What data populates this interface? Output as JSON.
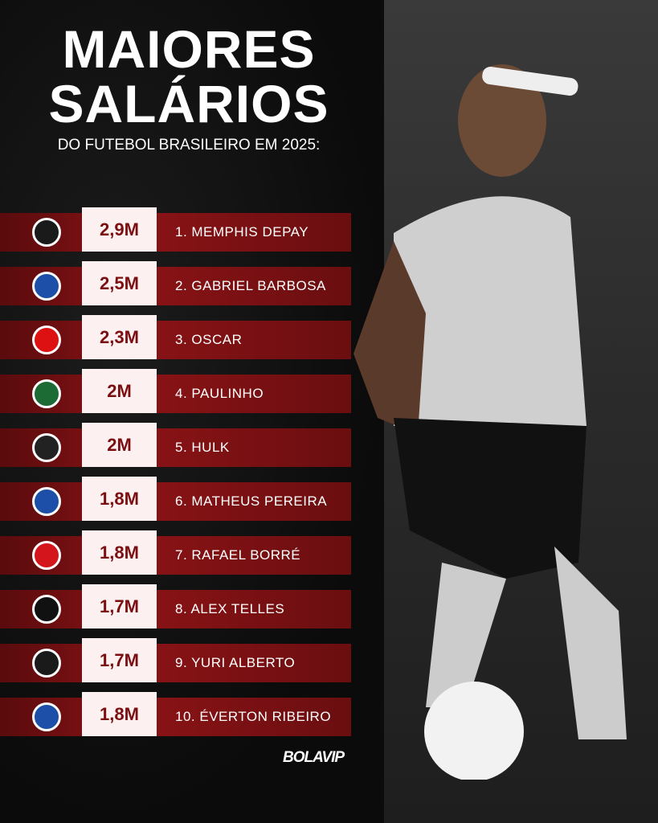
{
  "title_line1": "MAIORES",
  "title_line2": "SALÁRIOS",
  "subtitle": "DO FUTEBOL BRASILEIRO EM 2025:",
  "brand": "BOLAVIP",
  "rows": [
    {
      "value": "2,9M",
      "name": "1. MEMPHIS DEPAY",
      "club_icon": "corinthians-crest",
      "color": "#1a1a1a"
    },
    {
      "value": "2,5M",
      "name": "2. GABRIEL BARBOSA",
      "club_icon": "cruzeiro-crest",
      "color": "#1e4fa8"
    },
    {
      "value": "2,3M",
      "name": "3. OSCAR",
      "club_icon": "sao-paulo-crest",
      "color": "#d11"
    },
    {
      "value": "2M",
      "name": "4. PAULINHO",
      "club_icon": "palmeiras-crest",
      "color": "#1c6b35"
    },
    {
      "value": "2M",
      "name": "5. HULK",
      "club_icon": "atletico-mineiro-crest",
      "color": "#222"
    },
    {
      "value": "1,8M",
      "name": "6. MATHEUS PEREIRA",
      "club_icon": "cruzeiro-crest",
      "color": "#1e4fa8"
    },
    {
      "value": "1,8M",
      "name": "7. RAFAEL BORRÉ",
      "club_icon": "internacional-crest",
      "color": "#d4161c"
    },
    {
      "value": "1,7M",
      "name": "8. ALEX TELLES",
      "club_icon": "botafogo-crest",
      "color": "#111"
    },
    {
      "value": "1,7M",
      "name": "9. YURI ALBERTO",
      "club_icon": "corinthians-crest",
      "color": "#1a1a1a"
    },
    {
      "value": "1,8M",
      "name": "10. ÉVERTON RIBEIRO",
      "club_icon": "bahia-crest",
      "color": "#1e4fa8"
    }
  ]
}
